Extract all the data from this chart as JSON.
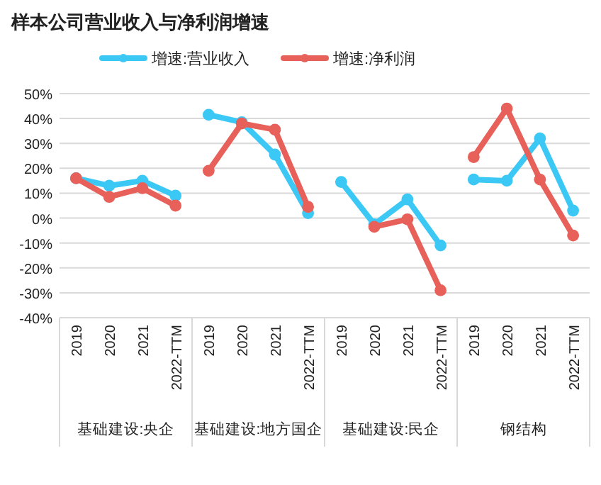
{
  "chart_data": [
    {
      "type": "line",
      "title": "样本公司营业收入与净利润增速",
      "xlabel": "基础建设:央企",
      "categories": [
        "2019",
        "2020",
        "2021",
        "2022-TTM"
      ],
      "ylim": [
        -40,
        50
      ],
      "yticks": [
        {
          "value": -40,
          "label": "-40%"
        },
        {
          "value": -30,
          "label": "-30%"
        },
        {
          "value": -20,
          "label": "-20%"
        },
        {
          "value": -10,
          "label": "-10%"
        },
        {
          "value": 0,
          "label": "0%"
        },
        {
          "value": 10,
          "label": "10%"
        },
        {
          "value": 20,
          "label": "20%"
        },
        {
          "value": 30,
          "label": "30%"
        },
        {
          "value": 40,
          "label": "40%"
        },
        {
          "value": 50,
          "label": "50%"
        }
      ],
      "grid": "y",
      "legend": "top",
      "marker": "circle",
      "line_style": "solid",
      "series": [
        {
          "name": "增速:营业收入",
          "color": "#3cc8f5",
          "values": [
            16,
            13,
            15,
            9
          ]
        },
        {
          "name": "增速:净利润",
          "color": "#e8605a",
          "values": [
            16,
            8.5,
            12,
            5
          ]
        }
      ]
    },
    {
      "type": "line",
      "xlabel": "基础建设:地方国企",
      "categories": [
        "2019",
        "2020",
        "2021",
        "2022-TTM"
      ],
      "ylim": [
        -40,
        50
      ],
      "yticks": [
        {
          "value": -40,
          "label": null
        },
        {
          "value": -30,
          "label": null
        },
        {
          "value": -20,
          "label": null
        },
        {
          "value": -10,
          "label": null
        },
        {
          "value": 0,
          "label": null
        },
        {
          "value": 10,
          "label": null
        },
        {
          "value": 20,
          "label": null
        },
        {
          "value": 30,
          "label": null
        },
        {
          "value": 40,
          "label": null
        },
        {
          "value": 50,
          "label": null
        }
      ],
      "grid": "y",
      "tick_labels": "x",
      "marker": "circle",
      "line_style": "solid",
      "series": [
        {
          "color": "#3cc8f5",
          "values": [
            41.5,
            38.5,
            25.5,
            2
          ]
        },
        {
          "color": "#e8605a",
          "values": [
            19,
            38,
            35.5,
            4.5
          ]
        }
      ]
    },
    {
      "type": "line",
      "xlabel": "基础建设:民企",
      "categories": [
        "2019",
        "2020",
        "2021",
        "2022-TTM"
      ],
      "ylim": [
        -40,
        50
      ],
      "yticks": [
        {
          "value": -40,
          "label": null
        },
        {
          "value": -30,
          "label": null
        },
        {
          "value": -20,
          "label": null
        },
        {
          "value": -10,
          "label": null
        },
        {
          "value": 0,
          "label": null
        },
        {
          "value": 10,
          "label": null
        },
        {
          "value": 20,
          "label": null
        },
        {
          "value": 30,
          "label": null
        },
        {
          "value": 40,
          "label": null
        },
        {
          "value": 50,
          "label": null
        }
      ],
      "grid": "y",
      "tick_labels": "x",
      "marker": "circle",
      "line_style": "solid",
      "series": [
        {
          "color": "#3cc8f5",
          "values": [
            14.5,
            -2.5,
            7.5,
            -11
          ]
        },
        {
          "color": "#e8605a",
          "values": [
            null,
            -3.5,
            -0.5,
            -29
          ]
        }
      ]
    },
    {
      "type": "line",
      "xlabel": "钢结构",
      "categories": [
        "2019",
        "2020",
        "2021",
        "2022-TTM"
      ],
      "ylim": [
        -40,
        50
      ],
      "yticks": [
        {
          "value": -40,
          "label": null
        },
        {
          "value": -30,
          "label": null
        },
        {
          "value": -20,
          "label": null
        },
        {
          "value": -10,
          "label": null
        },
        {
          "value": 0,
          "label": null
        },
        {
          "value": 10,
          "label": null
        },
        {
          "value": 20,
          "label": null
        },
        {
          "value": 30,
          "label": null
        },
        {
          "value": 40,
          "label": null
        },
        {
          "value": 50,
          "label": null
        }
      ],
      "grid": "y",
      "tick_labels": "x",
      "marker": "circle",
      "line_style": "solid",
      "series": [
        {
          "color": "#3cc8f5",
          "values": [
            15.5,
            15,
            32,
            3
          ]
        },
        {
          "color": "#e8605a",
          "values": [
            24.5,
            44,
            15.5,
            -7
          ]
        }
      ]
    }
  ]
}
